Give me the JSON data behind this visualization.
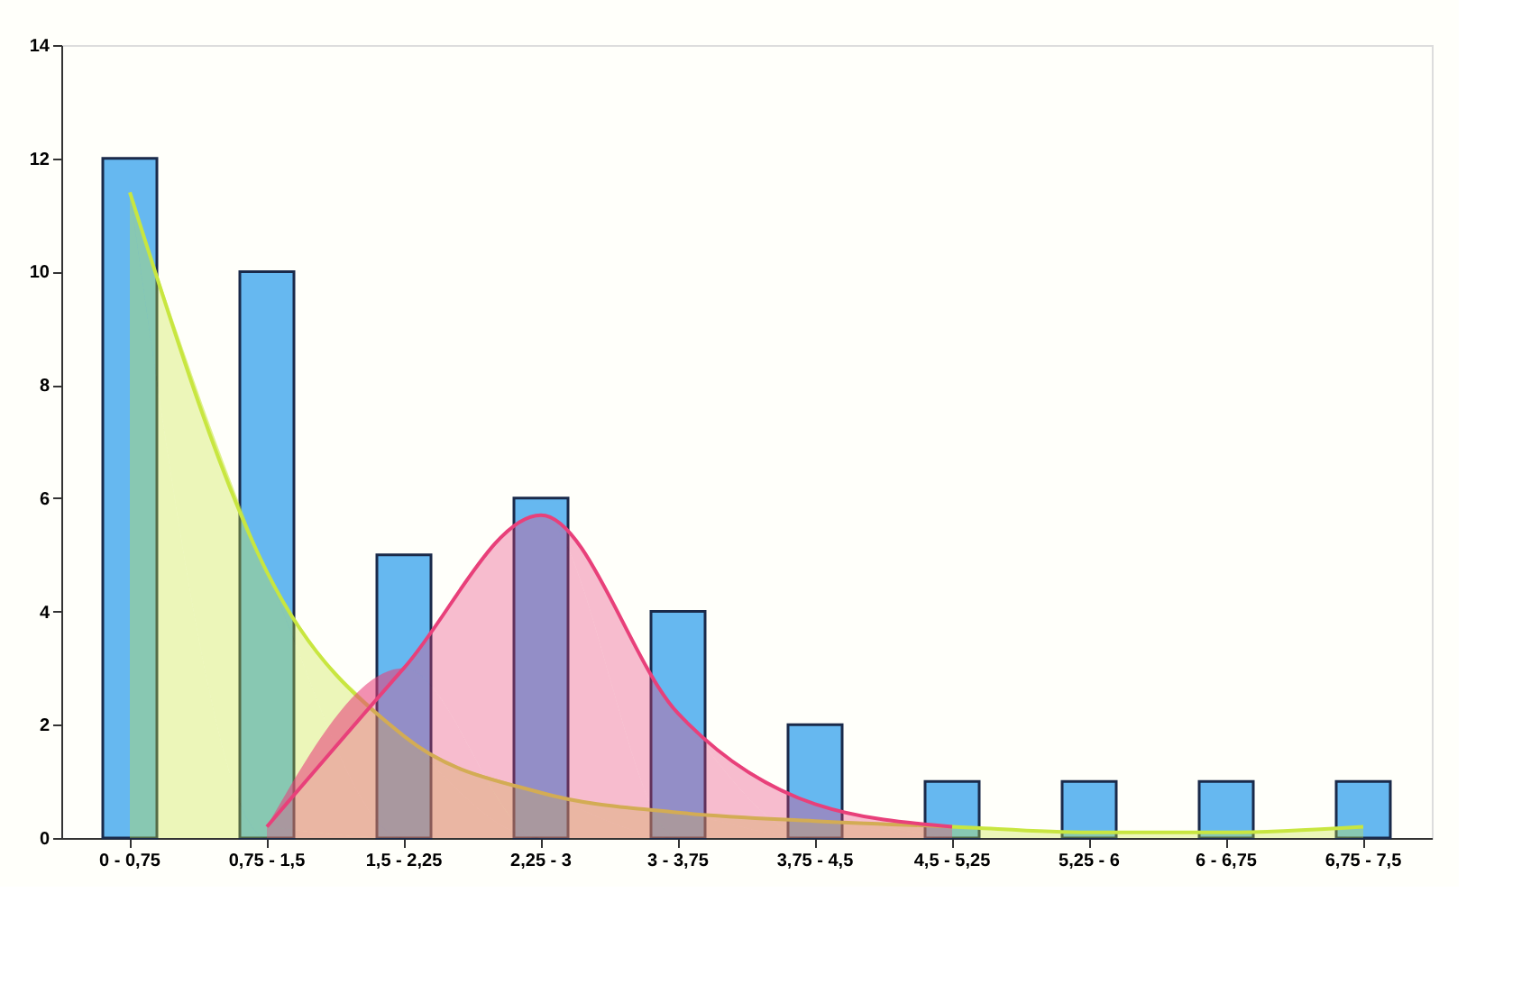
{
  "chart_data": {
    "type": "bar",
    "categories": [
      "0 - 0,75",
      "0,75 - 1,5",
      "1,5 - 2,25",
      "2,25 - 3",
      "3 - 3,75",
      "3,75 - 4,5",
      "4,5 - 5,25",
      "5,25 - 6",
      "6 - 6,75",
      "6,75 - 7,5"
    ],
    "series": [
      {
        "color": "#66b8f0",
        "values": [
          12,
          10,
          5,
          6,
          4,
          2,
          1,
          1,
          1,
          1
        ]
      },
      {
        "type": "area",
        "color": "#c8e640",
        "values": [
          11.4,
          4.7,
          1.8,
          0.8,
          0.45,
          0.3,
          0.2,
          0.1,
          0.1,
          0.2
        ]
      },
      {
        "type": "area",
        "color": "#e8407a",
        "values": [
          null,
          0.2,
          3.0,
          5.7,
          2.2,
          0.6,
          0.2,
          null,
          null,
          null
        ]
      }
    ],
    "ylim": [
      0,
      14
    ],
    "yticks": [
      0,
      2,
      4,
      6,
      8,
      10,
      12,
      14
    ],
    "grid": false
  }
}
